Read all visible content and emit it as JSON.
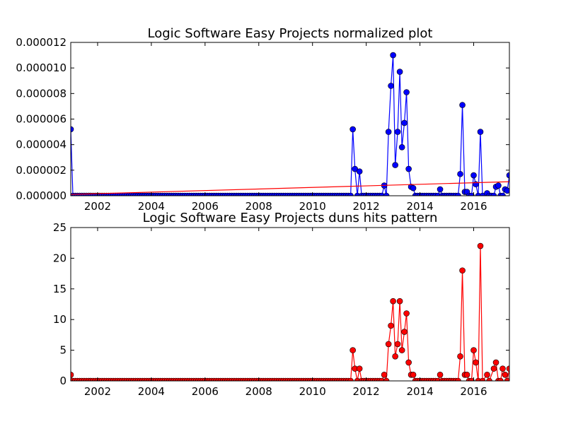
{
  "chart_data": [
    {
      "type": "line",
      "title": "Logic Software Easy Projects normalized plot",
      "xlabel": "",
      "ylabel": "",
      "xlim": [
        2001.0,
        2017.33
      ],
      "ylim": [
        0,
        1.2e-05
      ],
      "grid": false,
      "legend": "none",
      "x_tick_labels": [
        "2002",
        "2004",
        "2006",
        "2008",
        "2010",
        "2012",
        "2014",
        "2016"
      ],
      "y_tick_labels": [
        "0.000000",
        "0.000002",
        "0.000004",
        "0.000006",
        "0.000008",
        "0.000010",
        "0.000012"
      ],
      "series": [
        {
          "color": "#0000ff",
          "marker": "circle",
          "points": [
            [
              2001.0,
              5.2e-06
            ],
            [
              2001.08,
              0.0
            ],
            [
              2011.42,
              0.0
            ],
            [
              2011.5,
              5.2e-06
            ],
            [
              2011.58,
              2.1e-06
            ],
            [
              2011.67,
              0.0
            ],
            [
              2011.75,
              1.9e-06
            ],
            [
              2011.83,
              0.0
            ],
            [
              2012.58,
              0.0
            ],
            [
              2012.67,
              8e-07
            ],
            [
              2012.75,
              0.0
            ],
            [
              2012.83,
              5e-06
            ],
            [
              2012.92,
              8.6e-06
            ],
            [
              2013.0,
              1.1e-05
            ],
            [
              2013.08,
              2.4e-06
            ],
            [
              2013.17,
              5e-06
            ],
            [
              2013.25,
              9.7e-06
            ],
            [
              2013.33,
              3.8e-06
            ],
            [
              2013.42,
              5.7e-06
            ],
            [
              2013.5,
              8.1e-06
            ],
            [
              2013.58,
              2.1e-06
            ],
            [
              2013.67,
              7e-07
            ],
            [
              2013.75,
              6e-07
            ],
            [
              2013.83,
              0.0
            ],
            [
              2014.67,
              0.0
            ],
            [
              2014.75,
              5e-07
            ],
            [
              2014.83,
              0.0
            ],
            [
              2015.42,
              0.0
            ],
            [
              2015.5,
              1.7e-06
            ],
            [
              2015.58,
              7.1e-06
            ],
            [
              2015.67,
              3e-07
            ],
            [
              2015.75,
              3e-07
            ],
            [
              2015.83,
              0.0
            ],
            [
              2015.92,
              0.0
            ],
            [
              2016.0,
              1.6e-06
            ],
            [
              2016.08,
              9e-07
            ],
            [
              2016.17,
              0.0
            ],
            [
              2016.25,
              5e-06
            ],
            [
              2016.33,
              0.0
            ],
            [
              2016.5,
              2e-07
            ],
            [
              2016.58,
              0.0
            ],
            [
              2016.75,
              0.0
            ],
            [
              2016.83,
              7e-07
            ],
            [
              2016.92,
              8e-07
            ],
            [
              2017.0,
              0.0
            ],
            [
              2017.08,
              0.0
            ],
            [
              2017.17,
              5e-07
            ],
            [
              2017.25,
              4e-07
            ],
            [
              2017.33,
              1.6e-06
            ]
          ]
        },
        {
          "color": "#ff0000",
          "marker": "none",
          "points": [
            [
              2001.0,
              1e-07
            ],
            [
              2017.33,
              1.1e-06
            ]
          ]
        }
      ]
    },
    {
      "type": "line",
      "title": "Logic Software Easy Projects duns hits pattern",
      "xlabel": "",
      "ylabel": "",
      "xlim": [
        2001.0,
        2017.33
      ],
      "ylim": [
        0,
        25
      ],
      "grid": false,
      "legend": "none",
      "x_tick_labels": [
        "2002",
        "2004",
        "2006",
        "2008",
        "2010",
        "2012",
        "2014",
        "2016"
      ],
      "y_tick_labels": [
        "0",
        "5",
        "10",
        "15",
        "20",
        "25"
      ],
      "series": [
        {
          "color": "#ff0000",
          "marker": "circle",
          "points": [
            [
              2001.0,
              1
            ],
            [
              2001.08,
              0
            ],
            [
              2011.42,
              0
            ],
            [
              2011.5,
              5
            ],
            [
              2011.58,
              2
            ],
            [
              2011.67,
              0
            ],
            [
              2011.75,
              2
            ],
            [
              2011.83,
              0
            ],
            [
              2012.58,
              0
            ],
            [
              2012.67,
              1
            ],
            [
              2012.75,
              0
            ],
            [
              2012.83,
              6
            ],
            [
              2012.92,
              9
            ],
            [
              2013.0,
              13
            ],
            [
              2013.08,
              4
            ],
            [
              2013.17,
              6
            ],
            [
              2013.25,
              13
            ],
            [
              2013.33,
              5
            ],
            [
              2013.42,
              8
            ],
            [
              2013.5,
              11
            ],
            [
              2013.58,
              3
            ],
            [
              2013.67,
              1
            ],
            [
              2013.75,
              1
            ],
            [
              2013.83,
              0
            ],
            [
              2014.67,
              0
            ],
            [
              2014.75,
              1
            ],
            [
              2014.83,
              0
            ],
            [
              2015.42,
              0
            ],
            [
              2015.5,
              4
            ],
            [
              2015.58,
              18
            ],
            [
              2015.67,
              1
            ],
            [
              2015.75,
              1
            ],
            [
              2015.83,
              0
            ],
            [
              2015.92,
              0
            ],
            [
              2016.0,
              5
            ],
            [
              2016.08,
              3
            ],
            [
              2016.17,
              0
            ],
            [
              2016.25,
              22
            ],
            [
              2016.33,
              0
            ],
            [
              2016.5,
              1
            ],
            [
              2016.58,
              0
            ],
            [
              2016.75,
              2
            ],
            [
              2016.83,
              3
            ],
            [
              2016.92,
              0
            ],
            [
              2017.0,
              0
            ],
            [
              2017.08,
              2
            ],
            [
              2017.17,
              1
            ],
            [
              2017.25,
              0
            ],
            [
              2017.33,
              2
            ]
          ]
        }
      ]
    }
  ]
}
